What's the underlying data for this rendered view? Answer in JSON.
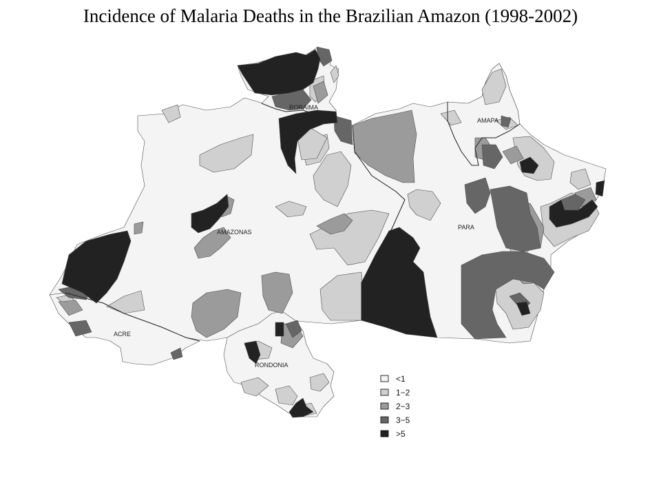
{
  "title": "Incidence of Malaria Deaths in the Brazilian Amazon (1998-2002)",
  "state_labels": {
    "roraima": "RORAIMA",
    "amapa": "AMAPA",
    "amazonas": "AMAZONAS",
    "para": "PARA",
    "acre": "ACRE",
    "rondonia": "RONDONIA"
  },
  "legend": {
    "items": [
      {
        "label": "<1",
        "color": "#f4f4f4"
      },
      {
        "label": "1−2",
        "color": "#d0d0d0"
      },
      {
        "label": "2−3",
        "color": "#9b9b9b"
      },
      {
        "label": "3−5",
        "color": "#666666"
      },
      {
        "label": ">5",
        "color": "#222222"
      }
    ]
  }
}
